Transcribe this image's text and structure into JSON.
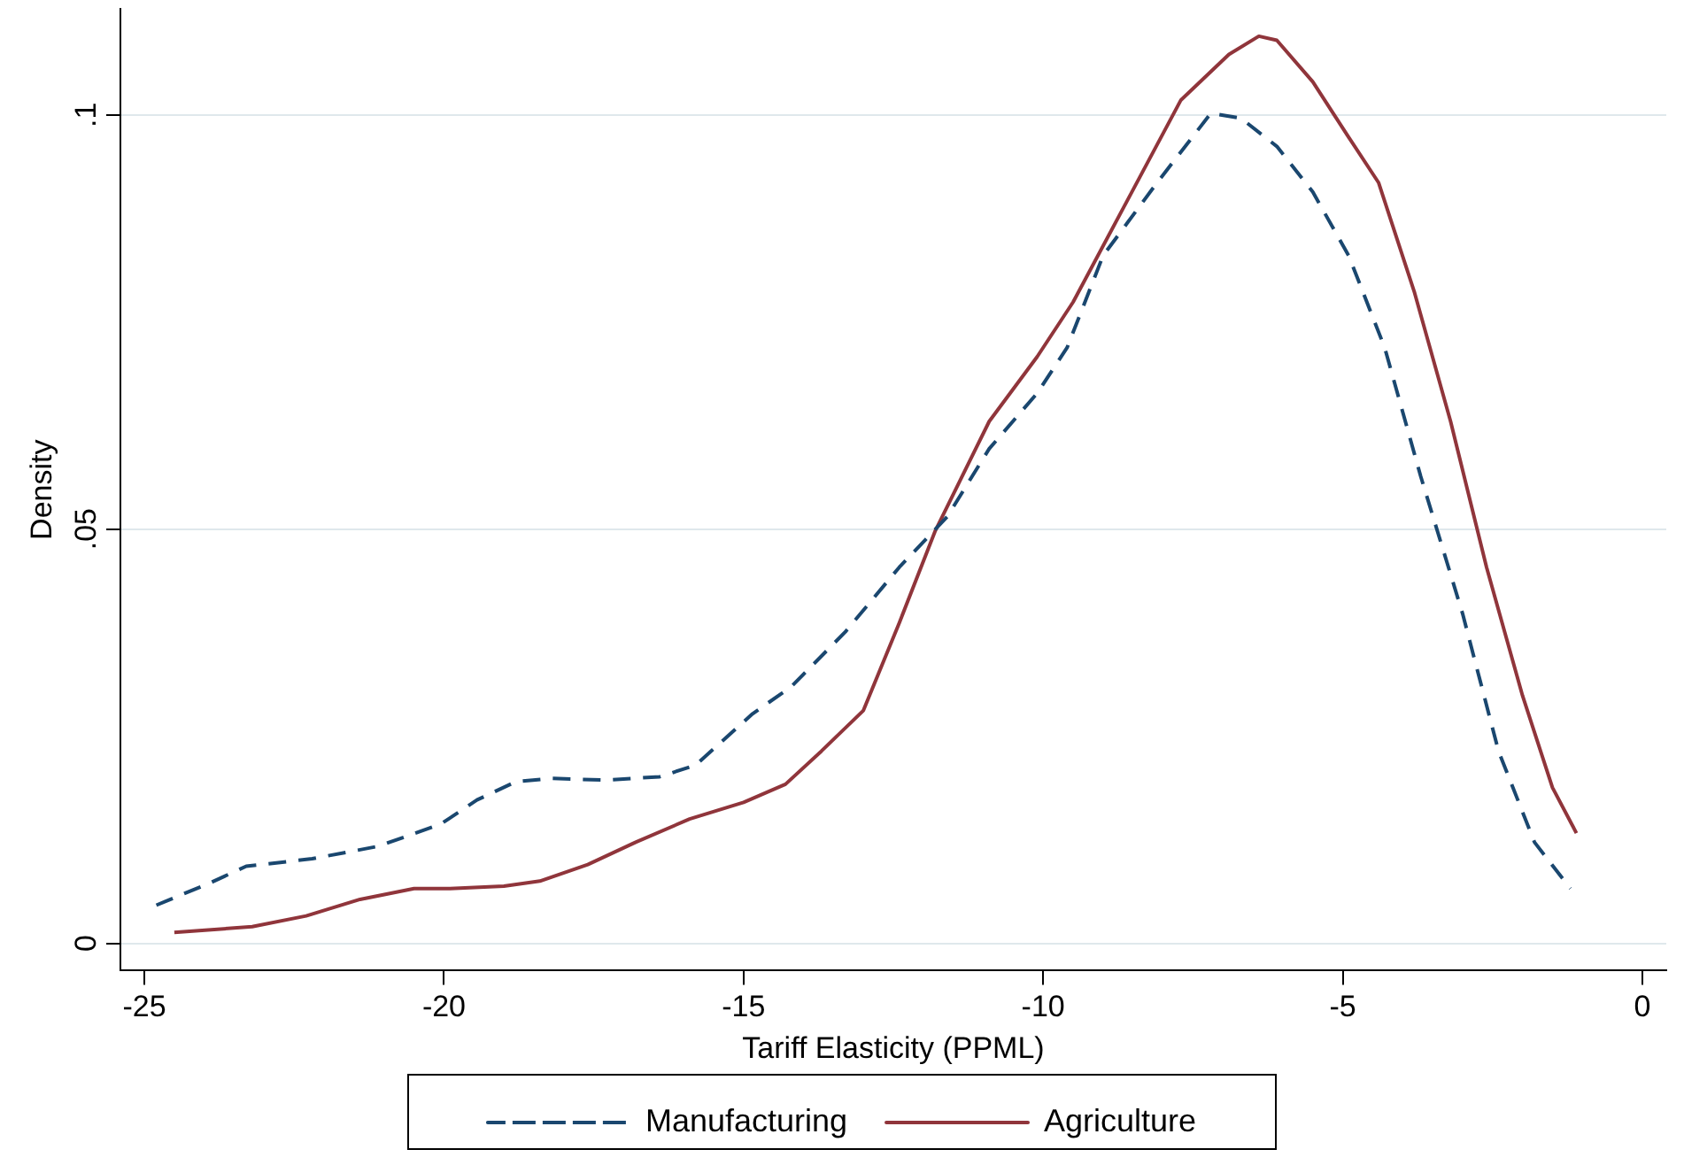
{
  "chart_data": {
    "type": "line",
    "xlabel": "Tariff Elasticity (PPML)",
    "ylabel": "Density",
    "xlim": [
      -25.4,
      0.4
    ],
    "xticks": [
      -25,
      -20,
      -15,
      -10,
      -5,
      0
    ],
    "ylim": [
      -0.0033,
      0.1128
    ],
    "yticks": [
      0,
      {
        "value": 0.05,
        "label": ".05"
      },
      {
        "value": 0.1,
        "label": ".1"
      }
    ],
    "grid": "y",
    "legend": "bottom",
    "marker": "none",
    "series": [
      {
        "name": "Manufacturing",
        "color": "#1a476f",
        "line_style": "dashed",
        "x": [
          -24.8,
          -23.9,
          -23.3,
          -22.2,
          -21.1,
          -20.05,
          -19.45,
          -18.8,
          -18.2,
          -17.3,
          -16.4,
          -15.8,
          -14.85,
          -14.2,
          -13.3,
          -12.4,
          -11.6,
          -10.9,
          -10.1,
          -9.6,
          -9,
          -8.1,
          -7.2,
          -6.7,
          -6.1,
          -5.5,
          -4.9,
          -4.3,
          -3.7,
          -3,
          -2.4,
          -1.8,
          -1.2
        ],
        "values": [
          0.0046,
          0.0073,
          0.0093,
          0.0102,
          0.0117,
          0.0144,
          0.0173,
          0.0195,
          0.0199,
          0.0197,
          0.0201,
          0.0215,
          0.0277,
          0.031,
          0.0376,
          0.0454,
          0.0515,
          0.0597,
          0.0664,
          0.0719,
          0.083,
          0.0918,
          0.1002,
          0.0996,
          0.0962,
          0.0907,
          0.083,
          0.0719,
          0.0564,
          0.0398,
          0.0232,
          0.0122,
          0.0066
        ]
      },
      {
        "name": "Agriculture",
        "color": "#90353b",
        "line_style": "solid",
        "x": [
          -24.5,
          -23.2,
          -22.3,
          -21.4,
          -20.5,
          -19.9,
          -19,
          -18.4,
          -17.6,
          -16.8,
          -15.9,
          -15,
          -14.3,
          -13.7,
          -13,
          -12.4,
          -11.8,
          -10.9,
          -10.1,
          -9.5,
          -8.6,
          -7.7,
          -6.9,
          -6.4,
          -6.1,
          -5.5,
          -4.9,
          -4.4,
          -3.8,
          -3.2,
          -2.6,
          -2,
          -1.5,
          -1.1
        ],
        "values": [
          0.0013,
          0.002,
          0.0033,
          0.0053,
          0.0066,
          0.0066,
          0.0069,
          0.0075,
          0.0095,
          0.0122,
          0.015,
          0.017,
          0.0192,
          0.0232,
          0.0281,
          0.0387,
          0.0498,
          0.063,
          0.0708,
          0.0774,
          0.0896,
          0.1018,
          0.1073,
          0.1095,
          0.109,
          0.104,
          0.0973,
          0.0918,
          0.0785,
          0.063,
          0.0454,
          0.0299,
          0.0188,
          0.0133
        ]
      }
    ]
  }
}
